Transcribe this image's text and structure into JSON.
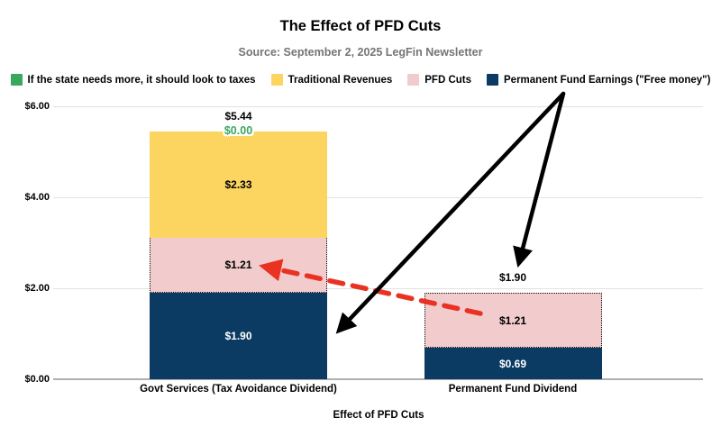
{
  "header": {
    "title": "The Effect of PFD Cuts",
    "subtitle": "Source: September 2, 2025 LegFin Newsletter"
  },
  "colors": {
    "green": "#3aa75f",
    "yellow": "#fbd55f",
    "pink": "#f2cccc",
    "navy": "#0b3a63",
    "arrow_black": "#000000",
    "arrow_red": "#ea3223",
    "subtitle_gray": "#757575",
    "gridline": "#e2e2e2",
    "baseline": "#b0b0b0"
  },
  "legend": [
    {
      "key": "green",
      "label": "If the state needs more, it should look to taxes"
    },
    {
      "key": "yellow",
      "label": "Traditional Revenues"
    },
    {
      "key": "pink",
      "label": "PFD Cuts"
    },
    {
      "key": "navy",
      "label": "Permanent Fund Earnings (\"Free money\")"
    }
  ],
  "chart_data": {
    "type": "bar",
    "stacked": true,
    "title": "The Effect of PFD Cuts",
    "subtitle": "Source: September 2, 2025 LegFin Newsletter",
    "xlabel": "Effect of PFD Cuts",
    "ylabel": "",
    "ylim": [
      0,
      6
    ],
    "grid": true,
    "legend_position": "top",
    "yticks": [
      {
        "label": "$0.00",
        "value": 0
      },
      {
        "label": "$2.00",
        "value": 2
      },
      {
        "label": "$4.00",
        "value": 4
      },
      {
        "label": "$6.00",
        "value": 6
      }
    ],
    "categories": [
      "Govt Services (Tax Avoidance Dividend)",
      "Permanent Fund Dividend"
    ],
    "series": [
      {
        "name": "Permanent Fund Earnings (\"Free money\")",
        "color_key": "navy",
        "values": [
          1.9,
          0.69
        ],
        "labels": [
          "$1.90",
          "$0.69"
        ],
        "label_color": "#ffffff"
      },
      {
        "name": "PFD Cuts",
        "color_key": "pink",
        "values": [
          1.21,
          1.21
        ],
        "labels": [
          "$1.21",
          "$1.21"
        ],
        "label_color": "#000000",
        "border": "dotted"
      },
      {
        "name": "Traditional Revenues",
        "color_key": "yellow",
        "values": [
          2.33,
          0
        ],
        "labels": [
          "$2.33",
          ""
        ],
        "label_color": "#000000"
      },
      {
        "name": "If the state needs more, it should look to taxes",
        "color_key": "green",
        "values": [
          0,
          0
        ],
        "labels": [
          "$0.00",
          ""
        ],
        "label_color": "#3aa75f",
        "zero_label_style": "outlined-green"
      }
    ],
    "totals": [
      "$5.44",
      "$1.90"
    ],
    "annotations": [
      {
        "name": "black-arrow-to-left-bar",
        "style": "solid",
        "head": "black",
        "from": [
          625,
          104
        ],
        "to": [
          377,
          366
        ]
      },
      {
        "name": "black-arrow-to-right-bar",
        "style": "solid",
        "head": "black",
        "from": [
          625,
          104
        ],
        "to": [
          576,
          291
        ]
      },
      {
        "name": "red-dashed-arrow-pfd-cut-shift",
        "style": "dashed",
        "head": "red",
        "from": [
          533,
          348
        ],
        "to": [
          294,
          296
        ]
      }
    ]
  }
}
